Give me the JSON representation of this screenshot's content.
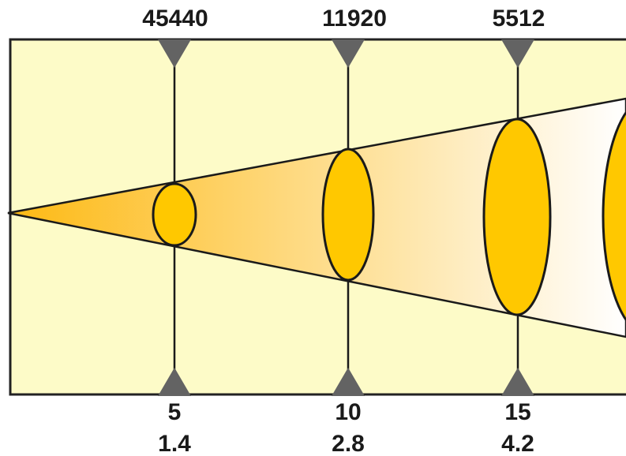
{
  "colors": {
    "panel_fill": "#fdfbc8",
    "panel_border": "#222222",
    "beam_start": "#fdb913",
    "beam_end": "#ffffff",
    "ellipse_fill": "#ffc800",
    "marker": "#636363",
    "line": "#1a1a1a"
  },
  "markers": [
    {
      "top_value": "45440",
      "bottom_value": "5",
      "bottom_value_2": "1.4"
    },
    {
      "top_value": "11920",
      "bottom_value": "10",
      "bottom_value_2": "2.8"
    },
    {
      "top_value": "5512",
      "bottom_value": "15",
      "bottom_value_2": "4.2"
    }
  ]
}
